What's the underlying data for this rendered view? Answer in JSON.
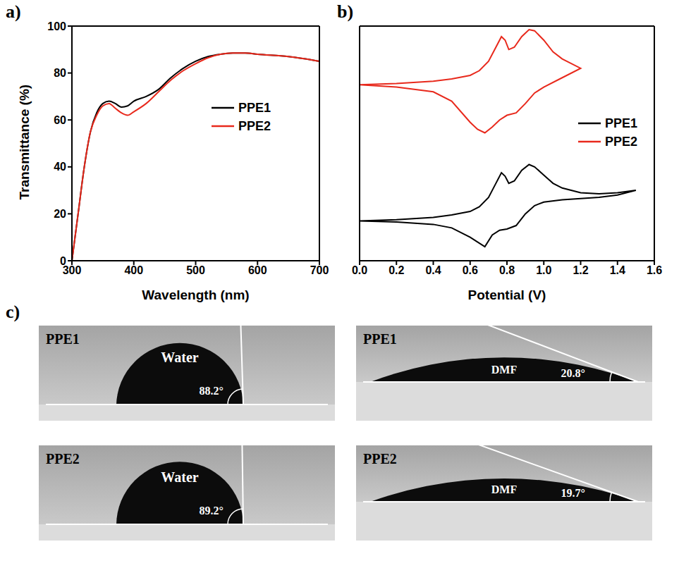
{
  "chart_data": [
    {
      "panel_label": "a)",
      "type": "line",
      "x_label": "Wavelength (nm)",
      "y_label": "Transmittance (%)",
      "x": [
        300,
        310,
        320,
        330,
        340,
        350,
        360,
        370,
        380,
        390,
        400,
        420,
        440,
        460,
        480,
        500,
        520,
        540,
        560,
        580,
        600,
        650,
        700
      ],
      "series": [
        {
          "name": "PPE1",
          "color": "#000000",
          "values": [
            0,
            20,
            40,
            55,
            63,
            67,
            68,
            67,
            65.5,
            66,
            68,
            70,
            73,
            78,
            82,
            85,
            87,
            88,
            88.5,
            88.5,
            88,
            87,
            85
          ]
        },
        {
          "name": "PPE2",
          "color": "#e8291c",
          "values": [
            0,
            20,
            40,
            55,
            62,
            66,
            67,
            65,
            63,
            62,
            63.5,
            67,
            72,
            77,
            81,
            84,
            86.5,
            88,
            88.5,
            88.5,
            88,
            87,
            85
          ]
        }
      ],
      "xlim": [
        300,
        700
      ],
      "xticks": [
        300,
        400,
        500,
        600,
        700
      ],
      "ylim": [
        0,
        100
      ],
      "yticks": [
        0,
        20,
        40,
        60,
        80,
        100
      ],
      "legend": "right"
    },
    {
      "panel_label": "b)",
      "type": "line",
      "x_label": "Potential (V)",
      "series": [
        {
          "name": "PPE1",
          "color": "#000000",
          "x": [
            0,
            0.2,
            0.4,
            0.5,
            0.6,
            0.65,
            0.7,
            0.74,
            0.77,
            0.79,
            0.81,
            0.84,
            0.88,
            0.92,
            0.95,
            1.0,
            1.05,
            1.1,
            1.2,
            1.3,
            1.4,
            1.5,
            1.4,
            1.3,
            1.2,
            1.1,
            1.0,
            0.95,
            0.9,
            0.85,
            0.8,
            0.76,
            0.72,
            0.68,
            0.64,
            0.6,
            0.5,
            0.4,
            0.2,
            0
          ],
          "values": [
            17,
            17.5,
            18.5,
            19.5,
            21,
            23,
            27,
            33,
            37.5,
            36,
            33,
            34,
            38.5,
            41,
            40,
            36.5,
            33,
            31,
            29,
            28.5,
            29,
            30,
            28,
            27,
            26.5,
            26,
            25,
            23.5,
            20,
            15,
            13.5,
            13,
            11,
            6,
            8,
            10,
            14,
            15.5,
            16.5,
            17
          ]
        },
        {
          "name": "PPE2",
          "color": "#e8291c",
          "x": [
            0,
            0.2,
            0.4,
            0.5,
            0.6,
            0.65,
            0.7,
            0.74,
            0.77,
            0.79,
            0.81,
            0.84,
            0.88,
            0.92,
            0.95,
            1.0,
            1.05,
            1.1,
            1.2,
            1.1,
            1.0,
            0.95,
            0.9,
            0.85,
            0.8,
            0.76,
            0.72,
            0.68,
            0.64,
            0.6,
            0.5,
            0.4,
            0.2,
            0
          ],
          "values": [
            75,
            75.5,
            76.5,
            77.5,
            79,
            81,
            85,
            91,
            95.5,
            94,
            90,
            91,
            95.5,
            98.5,
            98,
            94,
            89,
            86,
            82,
            78,
            74,
            71.5,
            67,
            63,
            62,
            60,
            57,
            54.5,
            56,
            59,
            68,
            72,
            74,
            75
          ]
        }
      ],
      "xlim": [
        0,
        1.6
      ],
      "xticks": [
        {
          "value": 0,
          "label": "0.0"
        },
        0.2,
        0.4,
        0.6,
        0.8,
        {
          "value": 1,
          "label": "1.0"
        },
        1.2,
        1.4,
        1.6
      ],
      "ylim": [
        0,
        100
      ],
      "tick_labels": "x",
      "legend": "right"
    }
  ],
  "contact_angle": {
    "panel_label": "c)",
    "images": [
      {
        "sample": "PPE1",
        "liquid": "Water",
        "angle": 88.2,
        "angle_label": "88.2°"
      },
      {
        "sample": "PPE1",
        "liquid": "DMF",
        "angle": 20.8,
        "angle_label": "20.8°"
      },
      {
        "sample": "PPE2",
        "liquid": "Water",
        "angle": 89.2,
        "angle_label": "89.2°"
      },
      {
        "sample": "PPE2",
        "liquid": "DMF",
        "angle": 19.7,
        "angle_label": "19.7°"
      }
    ]
  }
}
